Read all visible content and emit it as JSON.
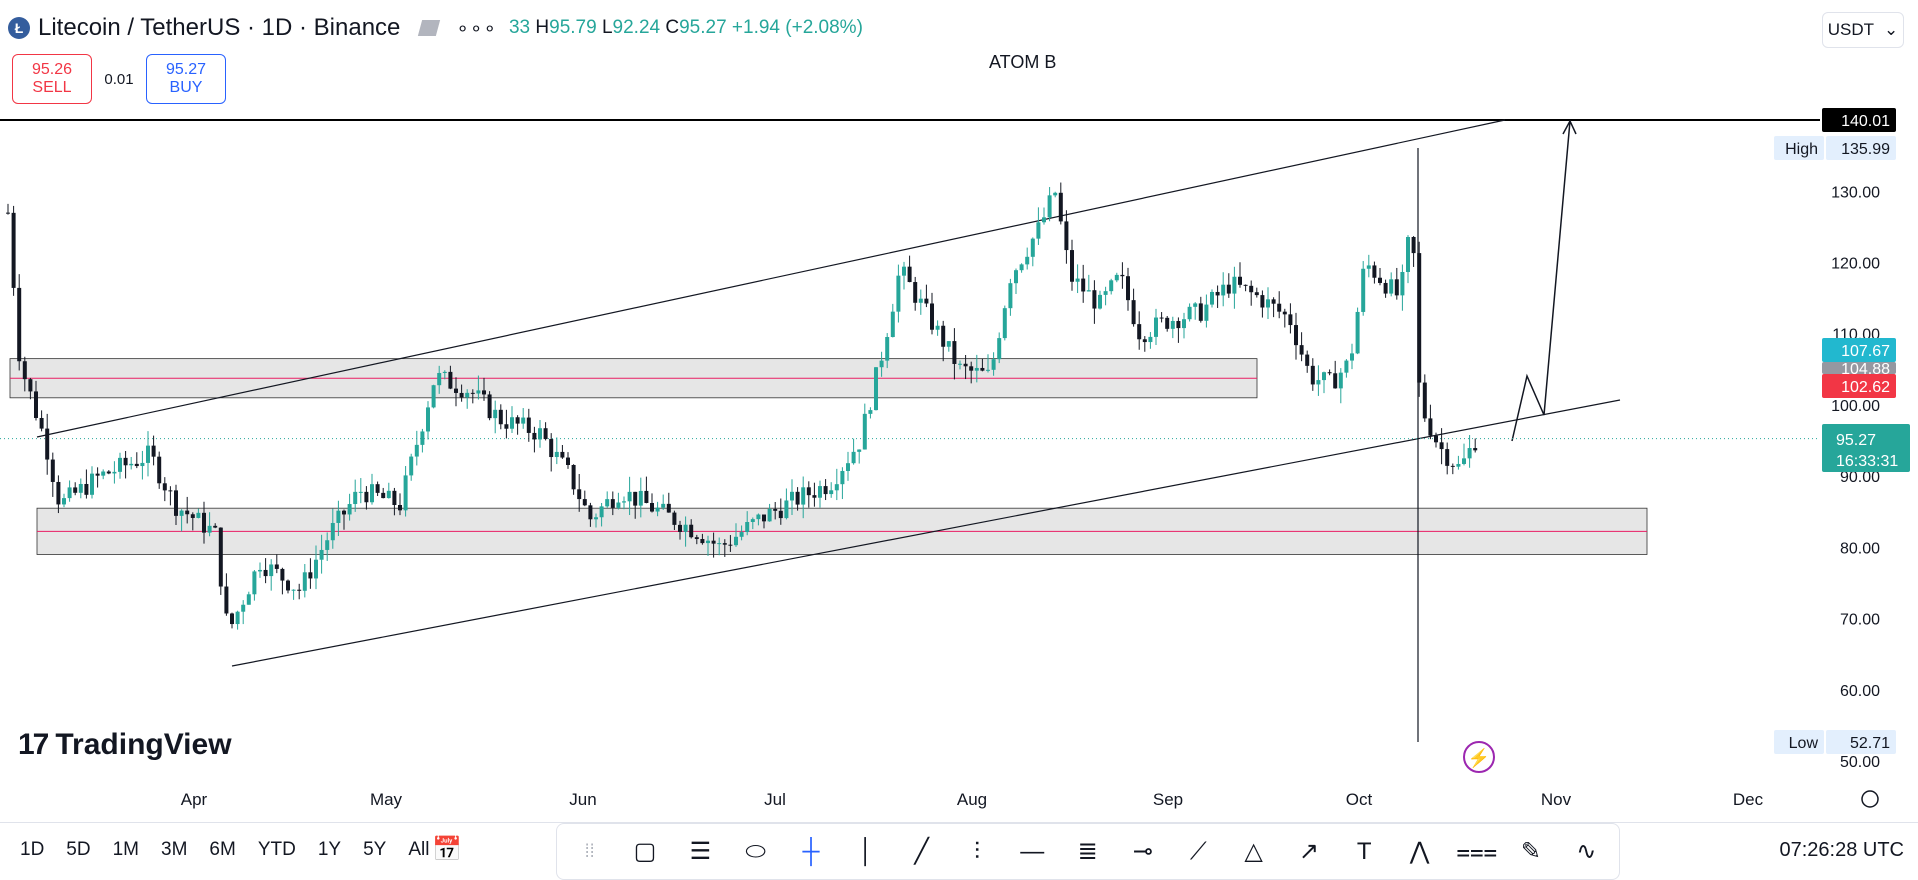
{
  "header": {
    "symbol_title": "Litecoin / TetherUS · 1D · Binance",
    "ohlc_tail": "33",
    "h_label": "H",
    "h_value": "95.79",
    "l_label": "L",
    "l_value": "92.24",
    "c_label": "C",
    "c_value": "95.27",
    "change": "+1.94 (+2.08%)",
    "dots": "∘∘∘",
    "coin_glyph": "Ł"
  },
  "trade": {
    "sell_price": "95.26",
    "sell_label": "SELL",
    "spread": "0.01",
    "buy_price": "95.27",
    "buy_label": "BUY"
  },
  "currency": {
    "label": "USDT",
    "chevron": "⌄"
  },
  "chart_title": "ATOM B",
  "logo": {
    "mark": "17",
    "text": "TradingView"
  },
  "chart_data": {
    "type": "candlestick",
    "ylim": [
      50,
      140.01
    ],
    "y_ticks": [
      "130.00",
      "120.00",
      "110.00",
      "100.00",
      "90.00",
      "80.00",
      "70.00",
      "60.00",
      "50.00"
    ],
    "x_ticks": [
      "Apr",
      "May",
      "Jun",
      "Jul",
      "Aug",
      "Sep",
      "Oct",
      "Nov",
      "Dec"
    ],
    "price_labels": {
      "top": "140.01",
      "high_label": "High",
      "high_value": "135.99",
      "cyan": "107.67",
      "hidden": "104.88",
      "red": "102.62",
      "last": "95.27",
      "countdown": "16:33:31",
      "low_label": "Low",
      "low_value": "52.71"
    },
    "colors": {
      "up": "#26a69a",
      "down": "#131722",
      "zone": "#e6e6e6",
      "zone_line": "#e91e63"
    },
    "zones": [
      {
        "from": 101,
        "to": 106.5
      },
      {
        "from": 79,
        "to": 85.5
      }
    ],
    "candles": []
  },
  "bottom": {
    "ranges": [
      "1D",
      "5D",
      "1M",
      "3M",
      "6M",
      "YTD",
      "1Y",
      "5Y",
      "All"
    ],
    "clock": "07:26:28 UTC"
  },
  "icons": [
    "calendar-icon",
    "rectangle-icon",
    "fib-icon",
    "ellipse-icon",
    "crosshair-icon",
    "vertical-line-icon",
    "trend-line-icon",
    "long-position-icon",
    "horizontal-ray-icon",
    "parallel-channel-icon",
    "horizontal-line-icon",
    "path-icon",
    "triangle-icon",
    "arrow-icon",
    "text-icon",
    "pattern-icon",
    "projection-icon",
    "brush-icon",
    "curve-icon",
    "lightning-icon",
    "settings-icon"
  ]
}
